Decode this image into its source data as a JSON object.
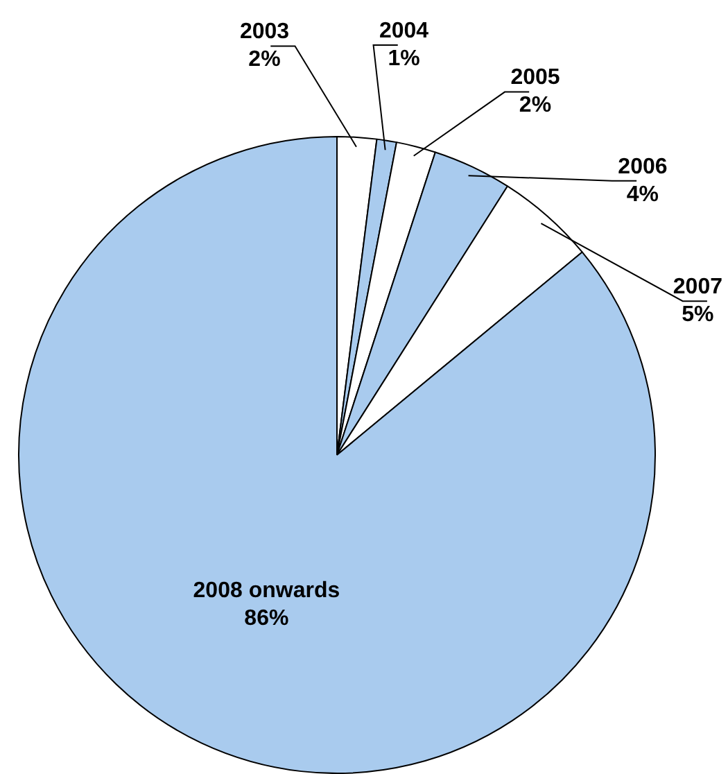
{
  "chart_data": {
    "type": "pie",
    "categories": [
      "2003",
      "2004",
      "2005",
      "2006",
      "2007",
      "2008 onwards"
    ],
    "values": [
      2,
      1,
      2,
      4,
      5,
      86
    ],
    "colors": [
      "#ffffff",
      "#a9cbee",
      "#ffffff",
      "#a9cbee",
      "#ffffff",
      "#a9cbee"
    ],
    "value_labels": [
      "2%",
      "1%",
      "2%",
      "4%",
      "5%",
      "86%"
    ],
    "legend": false
  }
}
